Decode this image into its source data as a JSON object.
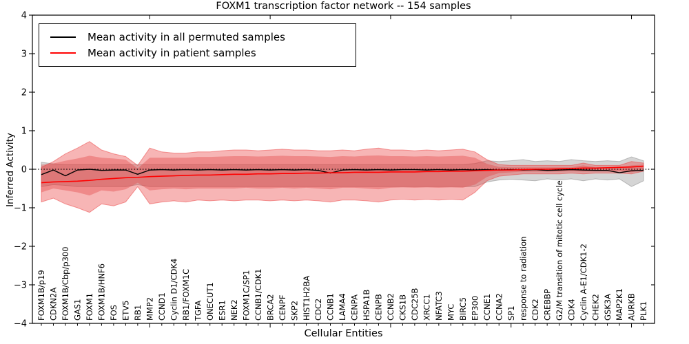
{
  "title": "FOXM1 transcription factor network -- 154 samples",
  "legend": {
    "entries": [
      {
        "label": "Mean activity in all permuted samples",
        "color": "#000000"
      },
      {
        "label": "Mean activity in patient samples",
        "color": "#ff0000"
      }
    ]
  },
  "chart_data": {
    "type": "line",
    "title": "FOXM1 transcription factor network -- 154 samples",
    "xlabel": "Cellular Entities",
    "ylabel": "Inferred Activity",
    "ylim": [
      -4,
      4
    ],
    "y_ticks": [
      4,
      3,
      2,
      1,
      0,
      -1,
      -2,
      -3,
      -4
    ],
    "y_tick_labels": [
      "4",
      "3",
      "2",
      "1",
      "0",
      "−1",
      "−2",
      "−3",
      "−4"
    ],
    "zero_line": true,
    "legend_position": "upper left",
    "grid": false,
    "categories": [
      "FOXM1B/p19",
      "CDKN2A",
      "FOXM1B/Cbp/p300",
      "GAS1",
      "FOXM1",
      "FOXM1B/HNF6",
      "FOS",
      "ETV5",
      "RB1",
      "MMP2",
      "CCND1",
      "Cyclin D1/CDK4",
      "RB1/FOXM1C",
      "TGFA",
      "ONECUT1",
      "ESR1",
      "NEK2",
      "FOXM1C/SP1",
      "CCNB1/CDK1",
      "BRCA2",
      "CENPF",
      "SKP2",
      "HIST1H2BA",
      "CDC2",
      "CCNB1",
      "LAMA4",
      "CENPA",
      "HSPA1B",
      "CENPB",
      "CCNB2",
      "CKS1B",
      "CDC25B",
      "XRCC1",
      "NFATC3",
      "MYC",
      "BIRC5",
      "EP300",
      "CCNE1",
      "CCNA2",
      "SP1",
      "response to radiation",
      "CDK2",
      "CREBBP",
      "G2/M transition of mitotic cell cycle",
      "CDK4",
      "Cyclin A-E1/CDK1-2",
      "CHEK2",
      "GSK3A",
      "MAP2K1",
      "AURKB",
      "PLK1"
    ],
    "series": [
      {
        "name": "mean-activity-permuted",
        "label": "Mean activity in all permuted samples",
        "color": "#000000",
        "width": 1.4,
        "values": [
          -0.14,
          -0.02,
          -0.17,
          -0.02,
          0,
          -0.03,
          -0.02,
          -0.02,
          -0.13,
          -0.02,
          -0.01,
          -0.02,
          -0.01,
          -0.02,
          -0.01,
          -0.02,
          -0.01,
          -0.02,
          -0.01,
          -0.02,
          -0.01,
          -0.02,
          -0.01,
          -0.03,
          -0.1,
          -0.02,
          -0.01,
          -0.02,
          -0.01,
          -0.02,
          -0.01,
          -0.01,
          -0.02,
          -0.01,
          -0.02,
          -0.01,
          -0.02,
          -0.01,
          -0.02,
          -0.01,
          -0.02,
          -0.01,
          -0.03,
          -0.02,
          -0.01,
          -0.02,
          -0.03,
          -0.03,
          -0.09,
          -0.04,
          -0.03
        ]
      },
      {
        "name": "mean-activity-patient",
        "label": "Mean activity in patient samples",
        "color": "#ff0000",
        "width": 1.6,
        "values": [
          -0.35,
          -0.33,
          -0.32,
          -0.31,
          -0.29,
          -0.26,
          -0.24,
          -0.22,
          -0.21,
          -0.19,
          -0.18,
          -0.17,
          -0.16,
          -0.15,
          -0.15,
          -0.14,
          -0.13,
          -0.13,
          -0.12,
          -0.12,
          -0.11,
          -0.11,
          -0.1,
          -0.1,
          -0.09,
          -0.09,
          -0.08,
          -0.08,
          -0.08,
          -0.07,
          -0.07,
          -0.07,
          -0.06,
          -0.06,
          -0.05,
          -0.05,
          -0.04,
          -0.03,
          -0.02,
          -0.02,
          -0.01,
          0,
          0,
          0.01,
          0.02,
          0.03,
          0.03,
          0.04,
          0.05,
          0.06,
          0.08
        ]
      }
    ],
    "bands": [
      {
        "name": "permuted-range-gray",
        "fill": "rgba(150,150,150,0.40)",
        "stroke": "rgba(130,130,130,0.5)",
        "upper": [
          0.18,
          0.14,
          0.12,
          0.12,
          0.12,
          0.12,
          0.12,
          0.12,
          0.12,
          0.12,
          0.12,
          0.12,
          0.12,
          0.12,
          0.12,
          0.12,
          0.12,
          0.12,
          0.12,
          0.12,
          0.12,
          0.12,
          0.12,
          0.12,
          0.12,
          0.12,
          0.12,
          0.12,
          0.12,
          0.12,
          0.12,
          0.12,
          0.12,
          0.12,
          0.12,
          0.12,
          0.15,
          0.22,
          0.2,
          0.22,
          0.25,
          0.2,
          0.22,
          0.2,
          0.25,
          0.22,
          0.2,
          0.22,
          0.2,
          0.32,
          0.22
        ],
        "lower": [
          -0.45,
          -0.4,
          -0.42,
          -0.45,
          -0.45,
          -0.45,
          -0.45,
          -0.45,
          -0.4,
          -0.45,
          -0.45,
          -0.45,
          -0.45,
          -0.45,
          -0.45,
          -0.45,
          -0.45,
          -0.45,
          -0.45,
          -0.45,
          -0.45,
          -0.45,
          -0.45,
          -0.45,
          -0.45,
          -0.45,
          -0.45,
          -0.45,
          -0.45,
          -0.45,
          -0.45,
          -0.45,
          -0.45,
          -0.45,
          -0.45,
          -0.45,
          -0.45,
          -0.33,
          -0.28,
          -0.26,
          -0.28,
          -0.3,
          -0.25,
          -0.28,
          -0.25,
          -0.3,
          -0.25,
          -0.28,
          -0.25,
          -0.45,
          -0.3
        ]
      },
      {
        "name": "patient-range-outer",
        "fill": "rgba(235,60,60,0.38)",
        "stroke": "rgba(235,60,60,0.5)",
        "upper": [
          0.05,
          0.2,
          0.4,
          0.55,
          0.72,
          0.5,
          0.4,
          0.33,
          0.1,
          0.55,
          0.45,
          0.42,
          0.42,
          0.45,
          0.45,
          0.48,
          0.5,
          0.5,
          0.48,
          0.5,
          0.52,
          0.5,
          0.5,
          0.48,
          0.48,
          0.5,
          0.48,
          0.52,
          0.55,
          0.5,
          0.5,
          0.48,
          0.5,
          0.48,
          0.5,
          0.52,
          0.45,
          0.25,
          0.12,
          0.1,
          0.1,
          0.1,
          0.1,
          0.1,
          0.1,
          0.16,
          0.1,
          0.1,
          0.1,
          0.2,
          0.16
        ],
        "lower": [
          -0.85,
          -0.75,
          -0.9,
          -1,
          -1.12,
          -0.9,
          -0.95,
          -0.85,
          -0.45,
          -0.9,
          -0.85,
          -0.82,
          -0.85,
          -0.8,
          -0.82,
          -0.8,
          -0.82,
          -0.8,
          -0.8,
          -0.82,
          -0.8,
          -0.82,
          -0.8,
          -0.82,
          -0.85,
          -0.8,
          -0.8,
          -0.82,
          -0.85,
          -0.8,
          -0.78,
          -0.8,
          -0.78,
          -0.8,
          -0.78,
          -0.8,
          -0.6,
          -0.3,
          -0.18,
          -0.15,
          -0.12,
          -0.12,
          -0.12,
          -0.12,
          -0.1,
          -0.12,
          -0.1,
          -0.1,
          -0.1,
          -0.12,
          -0.05
        ]
      },
      {
        "name": "patient-range-inner",
        "fill": "rgba(225,50,50,0.33)",
        "stroke": "none",
        "upper": [
          0.12,
          0.15,
          0.22,
          0.28,
          0.35,
          0.3,
          0.28,
          0.25,
          0.02,
          0.3,
          0.3,
          0.3,
          0.3,
          0.32,
          0.32,
          0.33,
          0.34,
          0.34,
          0.33,
          0.34,
          0.35,
          0.34,
          0.34,
          0.33,
          0.32,
          0.34,
          0.33,
          0.35,
          0.36,
          0.34,
          0.34,
          0.33,
          0.34,
          0.33,
          0.34,
          0.35,
          0.3,
          0.14,
          0.06,
          0.05,
          0.05,
          0.05,
          0.05,
          0.05,
          0.05,
          0.1,
          0.05,
          0.05,
          0.05,
          0.1,
          0.12
        ],
        "lower": [
          -0.6,
          -0.5,
          -0.55,
          -0.6,
          -0.68,
          -0.55,
          -0.58,
          -0.52,
          -0.35,
          -0.55,
          -0.52,
          -0.5,
          -0.52,
          -0.5,
          -0.5,
          -0.5,
          -0.5,
          -0.48,
          -0.5,
          -0.5,
          -0.48,
          -0.5,
          -0.48,
          -0.5,
          -0.52,
          -0.48,
          -0.48,
          -0.5,
          -0.52,
          -0.48,
          -0.47,
          -0.48,
          -0.47,
          -0.48,
          -0.47,
          -0.48,
          -0.4,
          -0.2,
          -0.1,
          -0.08,
          -0.06,
          -0.06,
          -0.06,
          -0.06,
          -0.05,
          -0.06,
          -0.05,
          -0.05,
          -0.05,
          -0.08,
          0
        ]
      }
    ]
  }
}
